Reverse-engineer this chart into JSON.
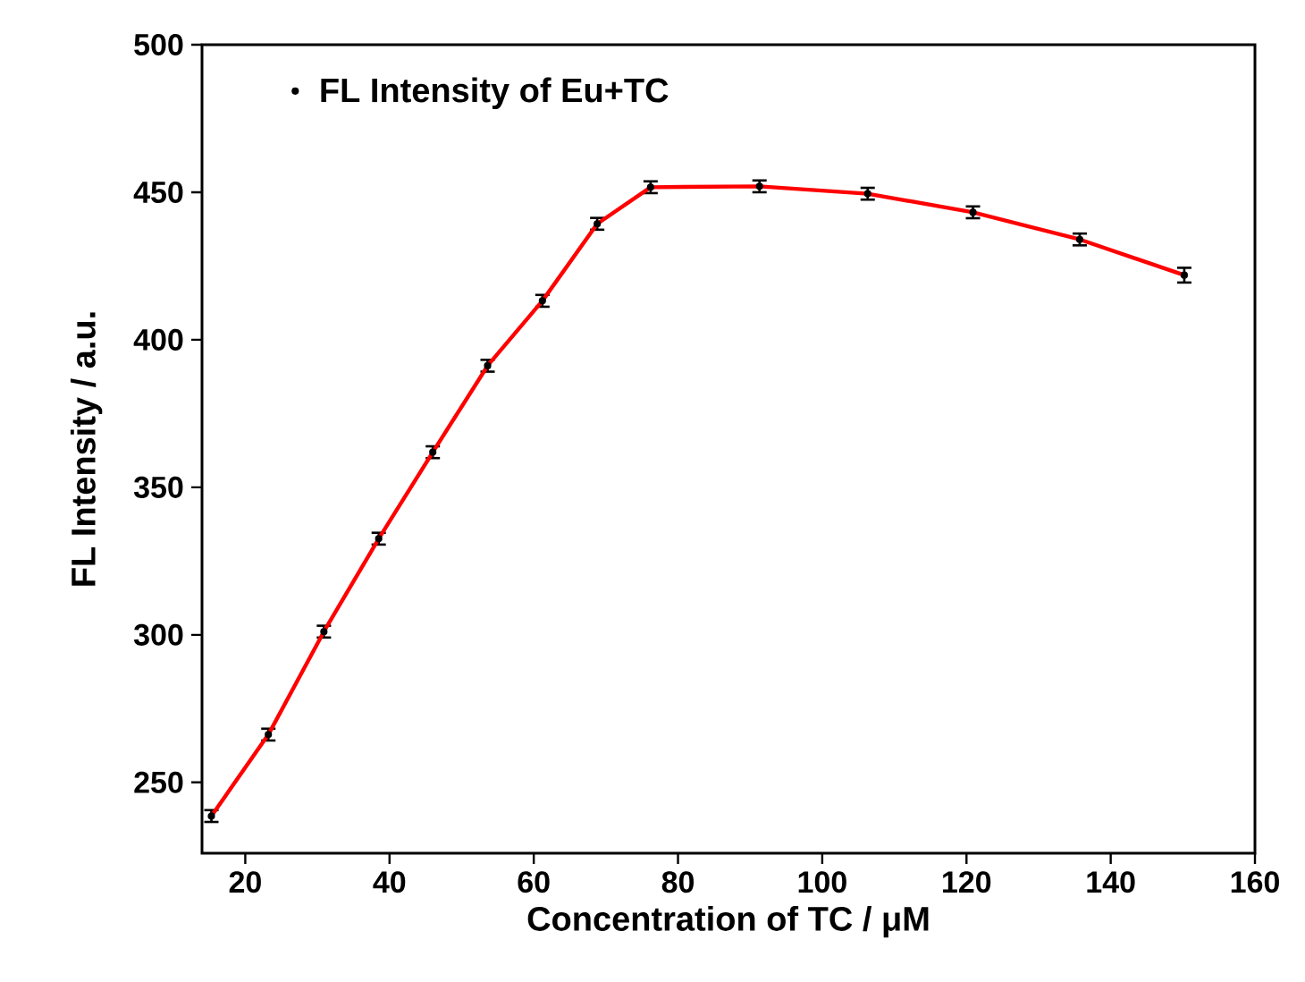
{
  "chart_data": {
    "type": "scatter",
    "xlabel": "Concentration of TC / μM",
    "ylabel": "FL Intensity / a.u.",
    "series": [
      {
        "name": "FL Intensity of Eu+TC",
        "marker": "circle",
        "color": "#000000",
        "x": [
          15.3,
          23.2,
          30.9,
          38.5,
          46.0,
          53.6,
          61.2,
          68.8,
          76.2,
          91.3,
          106.3,
          120.9,
          135.7,
          150.2
        ],
        "values": [
          238.6,
          266.2,
          301.1,
          332.6,
          361.9,
          391.2,
          413.2,
          439.3,
          451.7,
          452,
          449.5,
          443.2,
          434,
          421.9
        ],
        "errors": [
          2,
          2,
          2,
          2,
          2,
          2,
          2,
          2,
          2,
          2,
          2,
          2,
          2,
          2.5
        ]
      },
      {
        "type": "line",
        "marker": "none",
        "color": "#ff0000",
        "x": [
          15.3,
          23.2,
          30.9,
          38.5,
          46.0,
          53.6,
          61.2,
          68.8,
          76.2,
          91.3,
          106.3,
          120.9,
          135.7,
          150.2
        ],
        "values": [
          238.6,
          266.2,
          301.1,
          332.6,
          361.9,
          391.2,
          413.2,
          439.3,
          451.7,
          452,
          449.5,
          443.2,
          434,
          421.9
        ]
      }
    ],
    "xlim": [
      14,
      160
    ],
    "xticks": [
      20,
      40,
      60,
      80,
      100,
      120,
      140,
      160
    ],
    "ylim": [
      226,
      500
    ],
    "yticks": [
      250,
      300,
      350,
      400,
      450,
      500
    ],
    "legend": "top left",
    "grid": false
  }
}
